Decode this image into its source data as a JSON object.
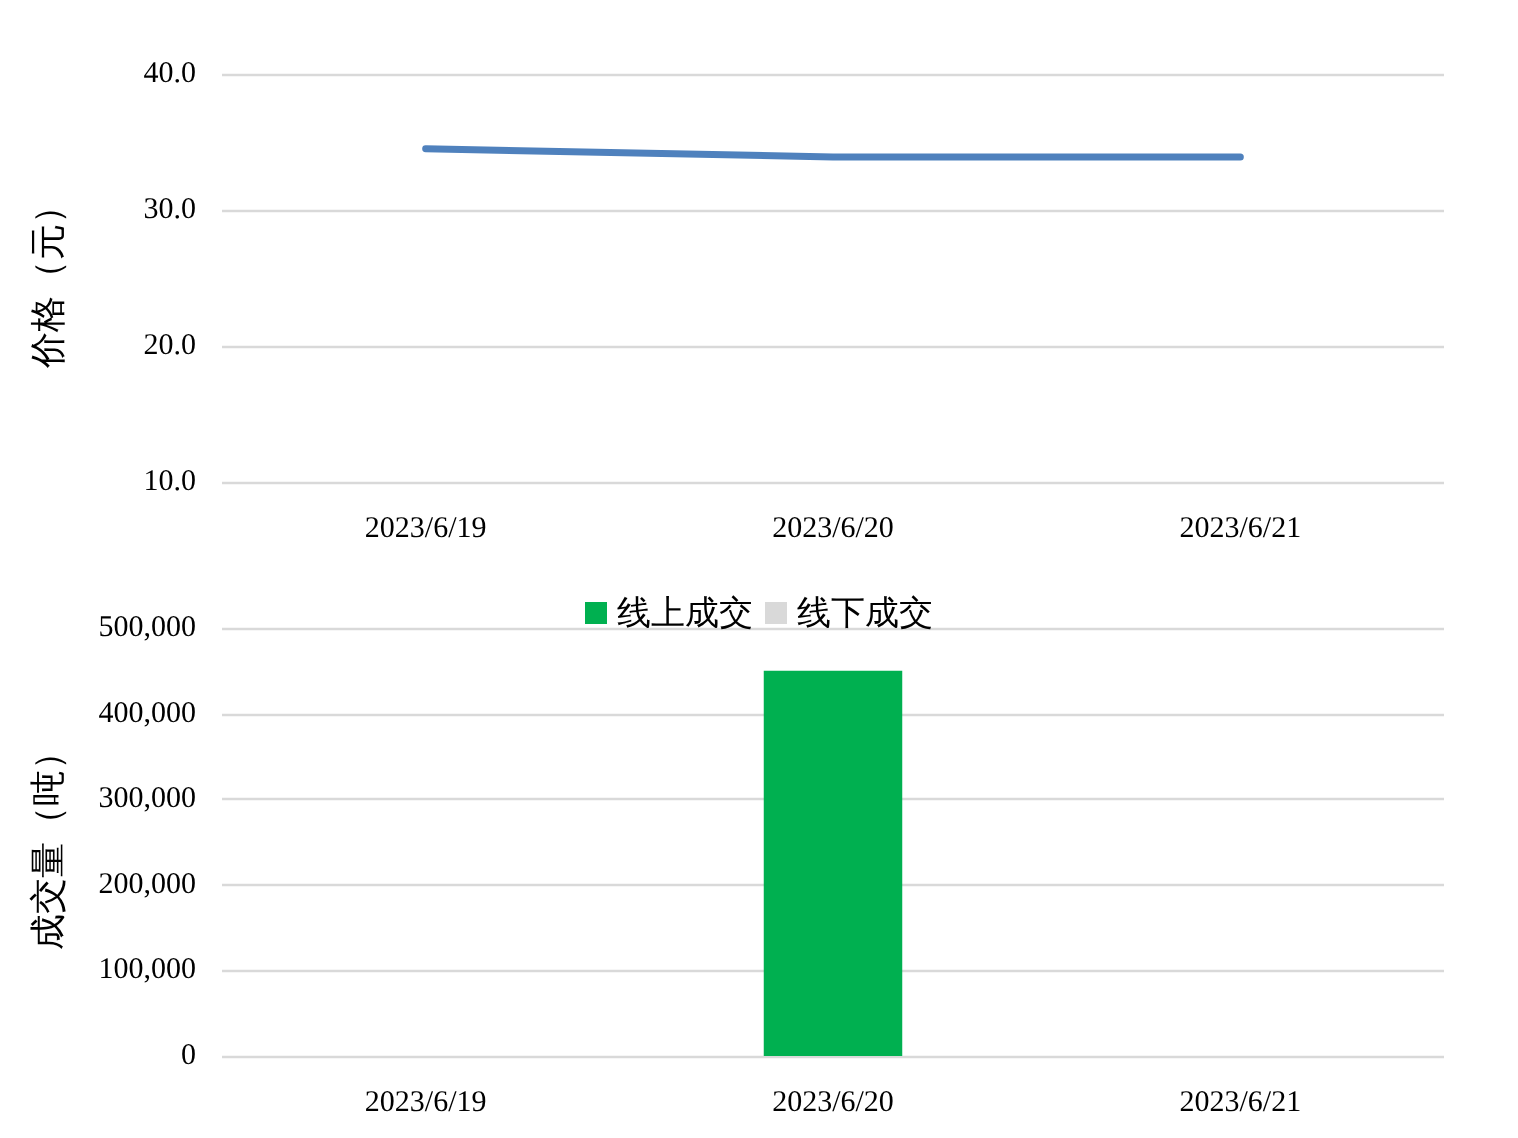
{
  "chart_data": [
    {
      "type": "line",
      "categories": [
        "2023/6/19",
        "2023/6/20",
        "2023/6/21"
      ],
      "ylabel": "价格（元）",
      "series": [
        {
          "color": "#4f81bd",
          "values": [
            34.5,
            33.9,
            33.9
          ]
        }
      ],
      "ylim": [
        10,
        40
      ],
      "yticks": [
        {
          "value": 10,
          "label": "10.0"
        },
        {
          "value": 20,
          "label": "20.0"
        },
        {
          "value": 30,
          "label": "30.0"
        },
        {
          "value": 40,
          "label": "40.0"
        }
      ],
      "grid": "y",
      "marker": "none"
    },
    {
      "type": "bar",
      "stacked": true,
      "categories": [
        "2023/6/19",
        "2023/6/20",
        "2023/6/21"
      ],
      "ylabel": "成交量（吨）",
      "series": [
        {
          "name": "线上成交",
          "color": "#00b050",
          "values": [
            null,
            450000,
            null
          ]
        },
        {
          "name": "线下成交",
          "color": "#d9d9d9",
          "values": [
            null,
            null,
            null
          ]
        }
      ],
      "ylim": [
        0,
        500000
      ],
      "yticks": [
        0,
        {
          "value": 100000,
          "label": "100,000"
        },
        {
          "value": 200000,
          "label": "200,000"
        },
        {
          "value": 300000,
          "label": "300,000"
        },
        {
          "value": 400000,
          "label": "400,000"
        },
        {
          "value": 500000,
          "label": "500,000"
        }
      ],
      "grid": "y",
      "legend": "top"
    }
  ]
}
